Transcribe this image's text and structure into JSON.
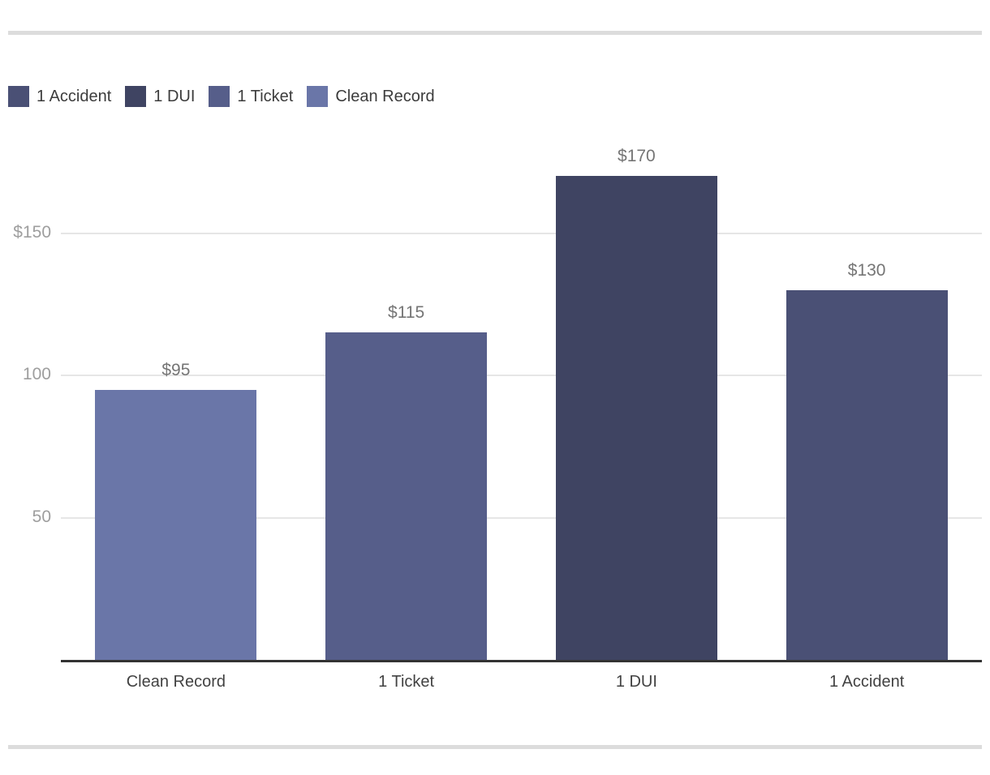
{
  "page": {
    "background": "#ffffff",
    "divider_color": "#dcdcdc"
  },
  "legend": {
    "position": "top-left",
    "items": [
      {
        "label": "1 Accident",
        "color": "#4A5075"
      },
      {
        "label": "1 DUI",
        "color": "#3F4462"
      },
      {
        "label": "1 Ticket",
        "color": "#565E8A"
      },
      {
        "label": "Clean Record",
        "color": "#6A76A8"
      }
    ]
  },
  "chart_data": {
    "type": "bar",
    "title": "",
    "xlabel": "",
    "ylabel": "",
    "categories": [
      "Clean Record",
      "1 Ticket",
      "1 DUI",
      "1 Accident"
    ],
    "values": [
      95,
      115,
      170,
      130
    ],
    "value_labels": [
      "$95",
      "$115",
      "$170",
      "$130"
    ],
    "bar_colors": [
      "#6A76A8",
      "#565E8A",
      "#3F4462",
      "#4A5075"
    ],
    "ylim": [
      0,
      200
    ],
    "yticks": [
      {
        "value": 150,
        "label": "$150"
      },
      {
        "value": 100,
        "label": "100"
      },
      {
        "value": 50,
        "label": "50"
      }
    ],
    "grid": true,
    "legend_position": "top-left",
    "axis_color": "#333333",
    "gridline_color": "#e6e6e6",
    "ytick_color": "#9e9e9e",
    "value_label_color": "#757575",
    "xtick_color": "#424242"
  }
}
